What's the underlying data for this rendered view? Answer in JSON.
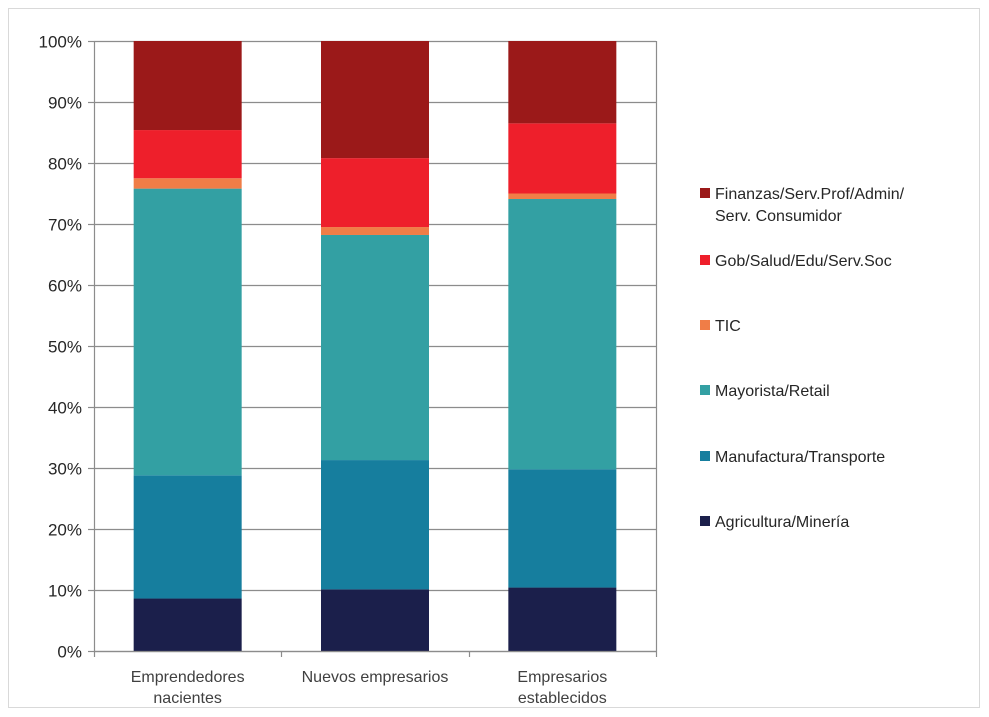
{
  "chart_data": {
    "type": "bar",
    "stacked": true,
    "percent": true,
    "categories": [
      [
        "Emprendedores",
        "nacientes"
      ],
      [
        "Nuevos empresarios"
      ],
      [
        "Empresarios",
        "establecidos"
      ]
    ],
    "yticks": [
      "0%",
      "10%",
      "20%",
      "30%",
      "40%",
      "50%",
      "60%",
      "70%",
      "80%",
      "90%",
      "100%"
    ],
    "ylim": [
      0,
      100
    ],
    "grid": true,
    "legend_position": "right",
    "series": [
      {
        "name": [
          "Agricultura/Minería"
        ],
        "color": "#1b1f4b",
        "values": [
          8.6,
          10.1,
          10.4
        ]
      },
      {
        "name": [
          "Manufactura/Transporte"
        ],
        "color": "#167e9e",
        "values": [
          20.2,
          21.2,
          19.4
        ]
      },
      {
        "name": [
          "Mayorista/Retail"
        ],
        "color": "#33a0a3",
        "values": [
          47.0,
          36.9,
          44.3
        ]
      },
      {
        "name": [
          "TIC"
        ],
        "color": "#f07d47",
        "values": [
          1.7,
          1.3,
          0.9
        ]
      },
      {
        "name": [
          "Gob/Salud/Edu/Serv.Soc"
        ],
        "color": "#ee1f2b",
        "values": [
          7.9,
          11.3,
          11.5
        ]
      },
      {
        "name": [
          "Finanzas/Serv.Prof/Admin/",
          "Serv. Consumidor"
        ],
        "color": "#9b1919",
        "values": [
          14.6,
          19.2,
          13.5
        ]
      }
    ]
  }
}
